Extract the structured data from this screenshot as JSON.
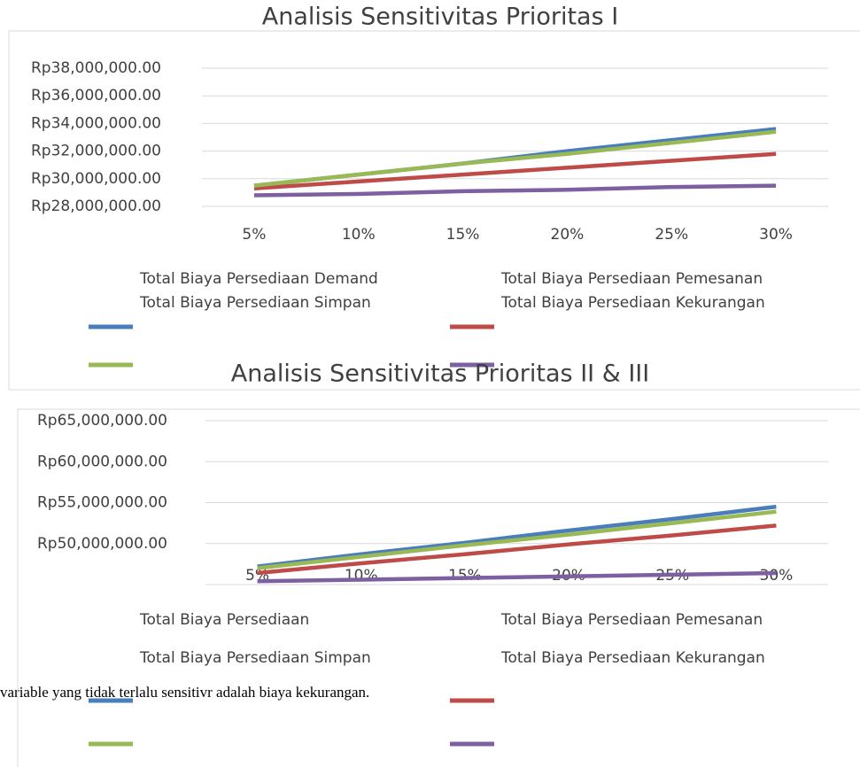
{
  "chart_data": [
    {
      "type": "line",
      "title": "Analisis Sensitivitas Prioritas I",
      "categories": [
        "5%",
        "10%",
        "15%",
        "20%",
        "25%",
        "30%"
      ],
      "series": [
        {
          "name": "Total Biaya Persediaan Demand",
          "color": "#4a7ebb",
          "values": [
            29500000,
            30300000,
            31100000,
            32000000,
            32800000,
            33600000
          ]
        },
        {
          "name": "Total Biaya Persediaan Pemesanan",
          "color": "#be4b48",
          "values": [
            29300000,
            29800000,
            30300000,
            30800000,
            31300000,
            31800000
          ]
        },
        {
          "name": "Total Biaya Persediaan Simpan",
          "color": "#98b954",
          "values": [
            29500000,
            30300000,
            31100000,
            31800000,
            32600000,
            33400000
          ]
        },
        {
          "name": "Total Biaya Persediaan Kekurangan",
          "color": "#7d60a0",
          "values": [
            28800000,
            28900000,
            29100000,
            29200000,
            29400000,
            29500000
          ]
        }
      ],
      "ylim": [
        28000000,
        38000000
      ],
      "yticks": [
        {
          "value": 28000000,
          "label": "Rp28,000,000.00"
        },
        {
          "value": 30000000,
          "label": "Rp30,000,000.00"
        },
        {
          "value": 32000000,
          "label": "Rp32,000,000.00"
        },
        {
          "value": 34000000,
          "label": "Rp34,000,000.00"
        },
        {
          "value": 36000000,
          "label": "Rp36,000,000.00"
        },
        {
          "value": 38000000,
          "label": "Rp38,000,000.00"
        }
      ],
      "grid": true
    },
    {
      "type": "line",
      "title": "Analisis Sensitivitas Prioritas II & III",
      "categories": [
        "5%",
        "10%",
        "15%",
        "20%",
        "25%",
        "30%"
      ],
      "series": [
        {
          "name": "Total Biaya Persediaan",
          "color": "#4a7ebb",
          "values": [
            47200000,
            48700000,
            50100000,
            51600000,
            53000000,
            54500000
          ]
        },
        {
          "name": "Total Biaya Persediaan Pemesanan",
          "color": "#be4b48",
          "values": [
            46400000,
            47600000,
            48700000,
            49900000,
            51000000,
            52200000
          ]
        },
        {
          "name": "Total Biaya Persediaan Simpan",
          "color": "#98b954",
          "values": [
            47000000,
            48400000,
            49800000,
            51100000,
            52500000,
            53900000
          ]
        },
        {
          "name": "Total Biaya Persediaan Kekurangan",
          "color": "#7d60a0",
          "values": [
            45400000,
            45600000,
            45800000,
            46000000,
            46200000,
            46400000
          ]
        }
      ],
      "ylim": [
        45000000,
        65000000
      ],
      "yticks": [
        {
          "value": 50000000,
          "label": "Rp50,000,000.00"
        },
        {
          "value": 55000000,
          "label": "Rp55,000,000.00"
        },
        {
          "value": 60000000,
          "label": "Rp60,000,000.00"
        },
        {
          "value": 65000000,
          "label": "Rp65,000,000.00"
        }
      ],
      "grid": true
    }
  ],
  "body_text": "variable yang tidak terlalu sensitivr adalah biaya kekurangan."
}
